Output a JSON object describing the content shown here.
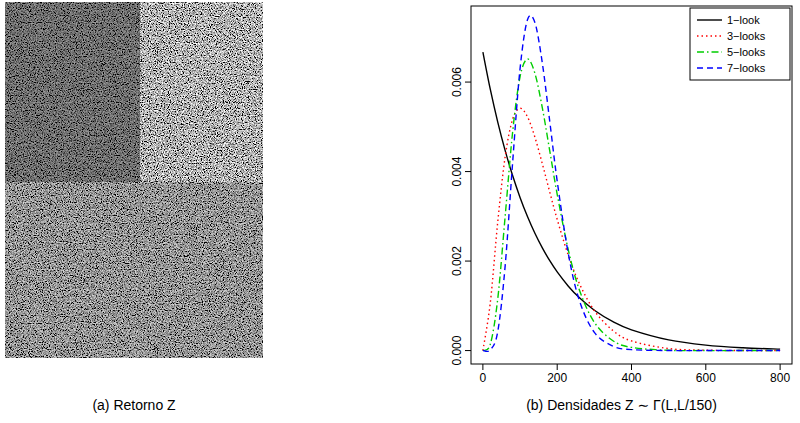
{
  "image": {
    "caption": "(a) Retorno Z"
  },
  "chart_data": {
    "type": "line",
    "title": "(b) Densidades Z ∼ Γ(L,L/150)",
    "x": [
      0,
      20,
      40,
      60,
      80,
      100,
      120,
      140,
      160,
      180,
      200,
      230,
      260,
      300,
      350,
      400,
      500,
      600,
      700,
      800
    ],
    "series": [
      {
        "name": "1−look",
        "color": "#000000",
        "line_style": "solid",
        "values": [
          0.006667,
          0.005835,
          0.005106,
          0.004469,
          0.003911,
          0.003423,
          0.002995,
          0.002621,
          0.002294,
          0.002008,
          0.001757,
          0.001439,
          0.001178,
          0.000902,
          0.000646,
          0.000463,
          0.000238,
          0.000122,
          6.3e-05,
          3.2e-05
        ]
      },
      {
        "name": "3−looks",
        "color": "#ff0000",
        "line_style": "dotted",
        "values": [
          0,
          0.001073,
          0.002876,
          0.004337,
          0.005169,
          0.005413,
          0.005225,
          0.004767,
          0.004174,
          0.003541,
          0.002931,
          0.002127,
          0.001492,
          0.000892,
          0.000447,
          0.000215,
          4.5e-05,
          9e-06,
          2e-06,
          0
        ]
      },
      {
        "name": "5−looks",
        "color": "#00cd00",
        "line_style": "dashdot",
        "values": [
          0,
          0.000141,
          0.001157,
          0.003007,
          0.00488,
          0.006116,
          0.006514,
          0.006195,
          0.005425,
          0.004462,
          0.003493,
          0.002246,
          0.001349,
          0.000631,
          0.00022,
          7.1e-05,
          6e-06,
          0,
          0,
          0
        ]
      },
      {
        "name": "7−looks",
        "color": "#0000ff",
        "line_style": "dashed",
        "values": [
          0,
          1.7e-05,
          0.000424,
          0.001899,
          0.004196,
          0.006296,
          0.007392,
          0.007329,
          0.006424,
          0.005121,
          0.003788,
          0.002161,
          0.001112,
          0.000406,
          9.9e-05,
          2.1e-05,
          1e-06,
          0,
          0,
          0
        ]
      }
    ],
    "xlim": [
      -32,
      832
    ],
    "xticks": [
      0,
      200,
      400,
      600,
      800
    ],
    "ylim": [
      -0.0003,
      0.0077
    ],
    "yticks": [
      {
        "value": 0,
        "label": "0.000"
      },
      {
        "value": 0.002,
        "label": "0.002"
      },
      {
        "value": 0.004,
        "label": "0.004"
      },
      {
        "value": 0.006,
        "label": "0.006"
      }
    ],
    "grid": false,
    "legend": "top-right"
  }
}
